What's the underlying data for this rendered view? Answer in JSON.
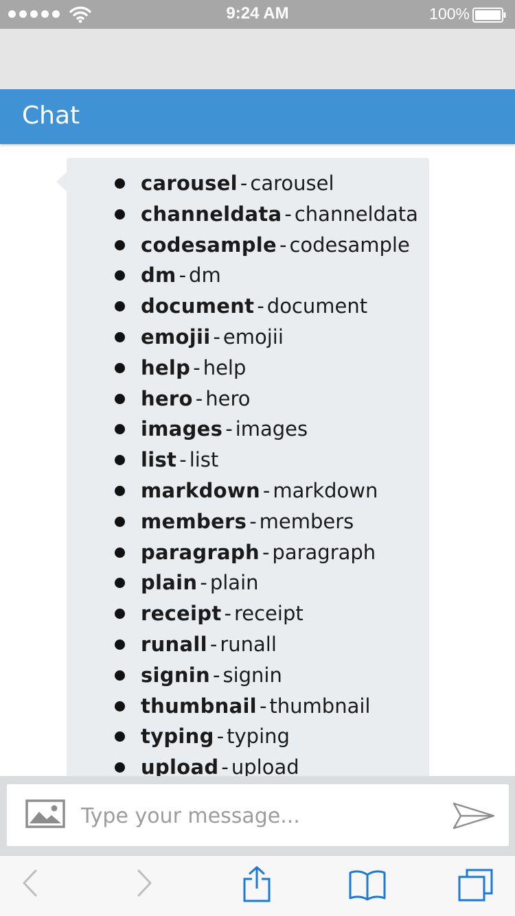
{
  "status_bar": {
    "time": "9:24 AM",
    "battery": "100%"
  },
  "header": {
    "title": "Chat"
  },
  "message": {
    "commands": [
      {
        "name": "carousel",
        "desc": "carousel"
      },
      {
        "name": "channeldata",
        "desc": "channeldata"
      },
      {
        "name": "codesample",
        "desc": "codesample"
      },
      {
        "name": "dm",
        "desc": "dm"
      },
      {
        "name": "document",
        "desc": "document"
      },
      {
        "name": "emojii",
        "desc": "emojii"
      },
      {
        "name": "help",
        "desc": "help"
      },
      {
        "name": "hero",
        "desc": "hero"
      },
      {
        "name": "images",
        "desc": "images"
      },
      {
        "name": "list",
        "desc": "list"
      },
      {
        "name": "markdown",
        "desc": "markdown"
      },
      {
        "name": "members",
        "desc": "members"
      },
      {
        "name": "paragraph",
        "desc": "paragraph"
      },
      {
        "name": "plain",
        "desc": "plain"
      },
      {
        "name": "receipt",
        "desc": "receipt"
      },
      {
        "name": "runall",
        "desc": "runall"
      },
      {
        "name": "signin",
        "desc": "signin"
      },
      {
        "name": "thumbnail",
        "desc": "thumbnail"
      },
      {
        "name": "typing",
        "desc": "typing"
      },
      {
        "name": "upload",
        "desc": "upload"
      }
    ],
    "separator": "-"
  },
  "input": {
    "placeholder": "Type your message...",
    "value": ""
  },
  "icons": {
    "signal": "signal-dots-icon",
    "wifi": "wifi-icon",
    "battery": "battery-icon",
    "attach": "image-icon",
    "send": "send-icon",
    "back": "chevron-left-icon",
    "forward": "chevron-right-icon",
    "share": "share-icon",
    "bookmarks": "book-icon",
    "tabs": "tabs-icon"
  },
  "colors": {
    "header": "#3f92d3",
    "bubble": "#eaedf0",
    "toolbar_accent": "#1a7ad9"
  }
}
